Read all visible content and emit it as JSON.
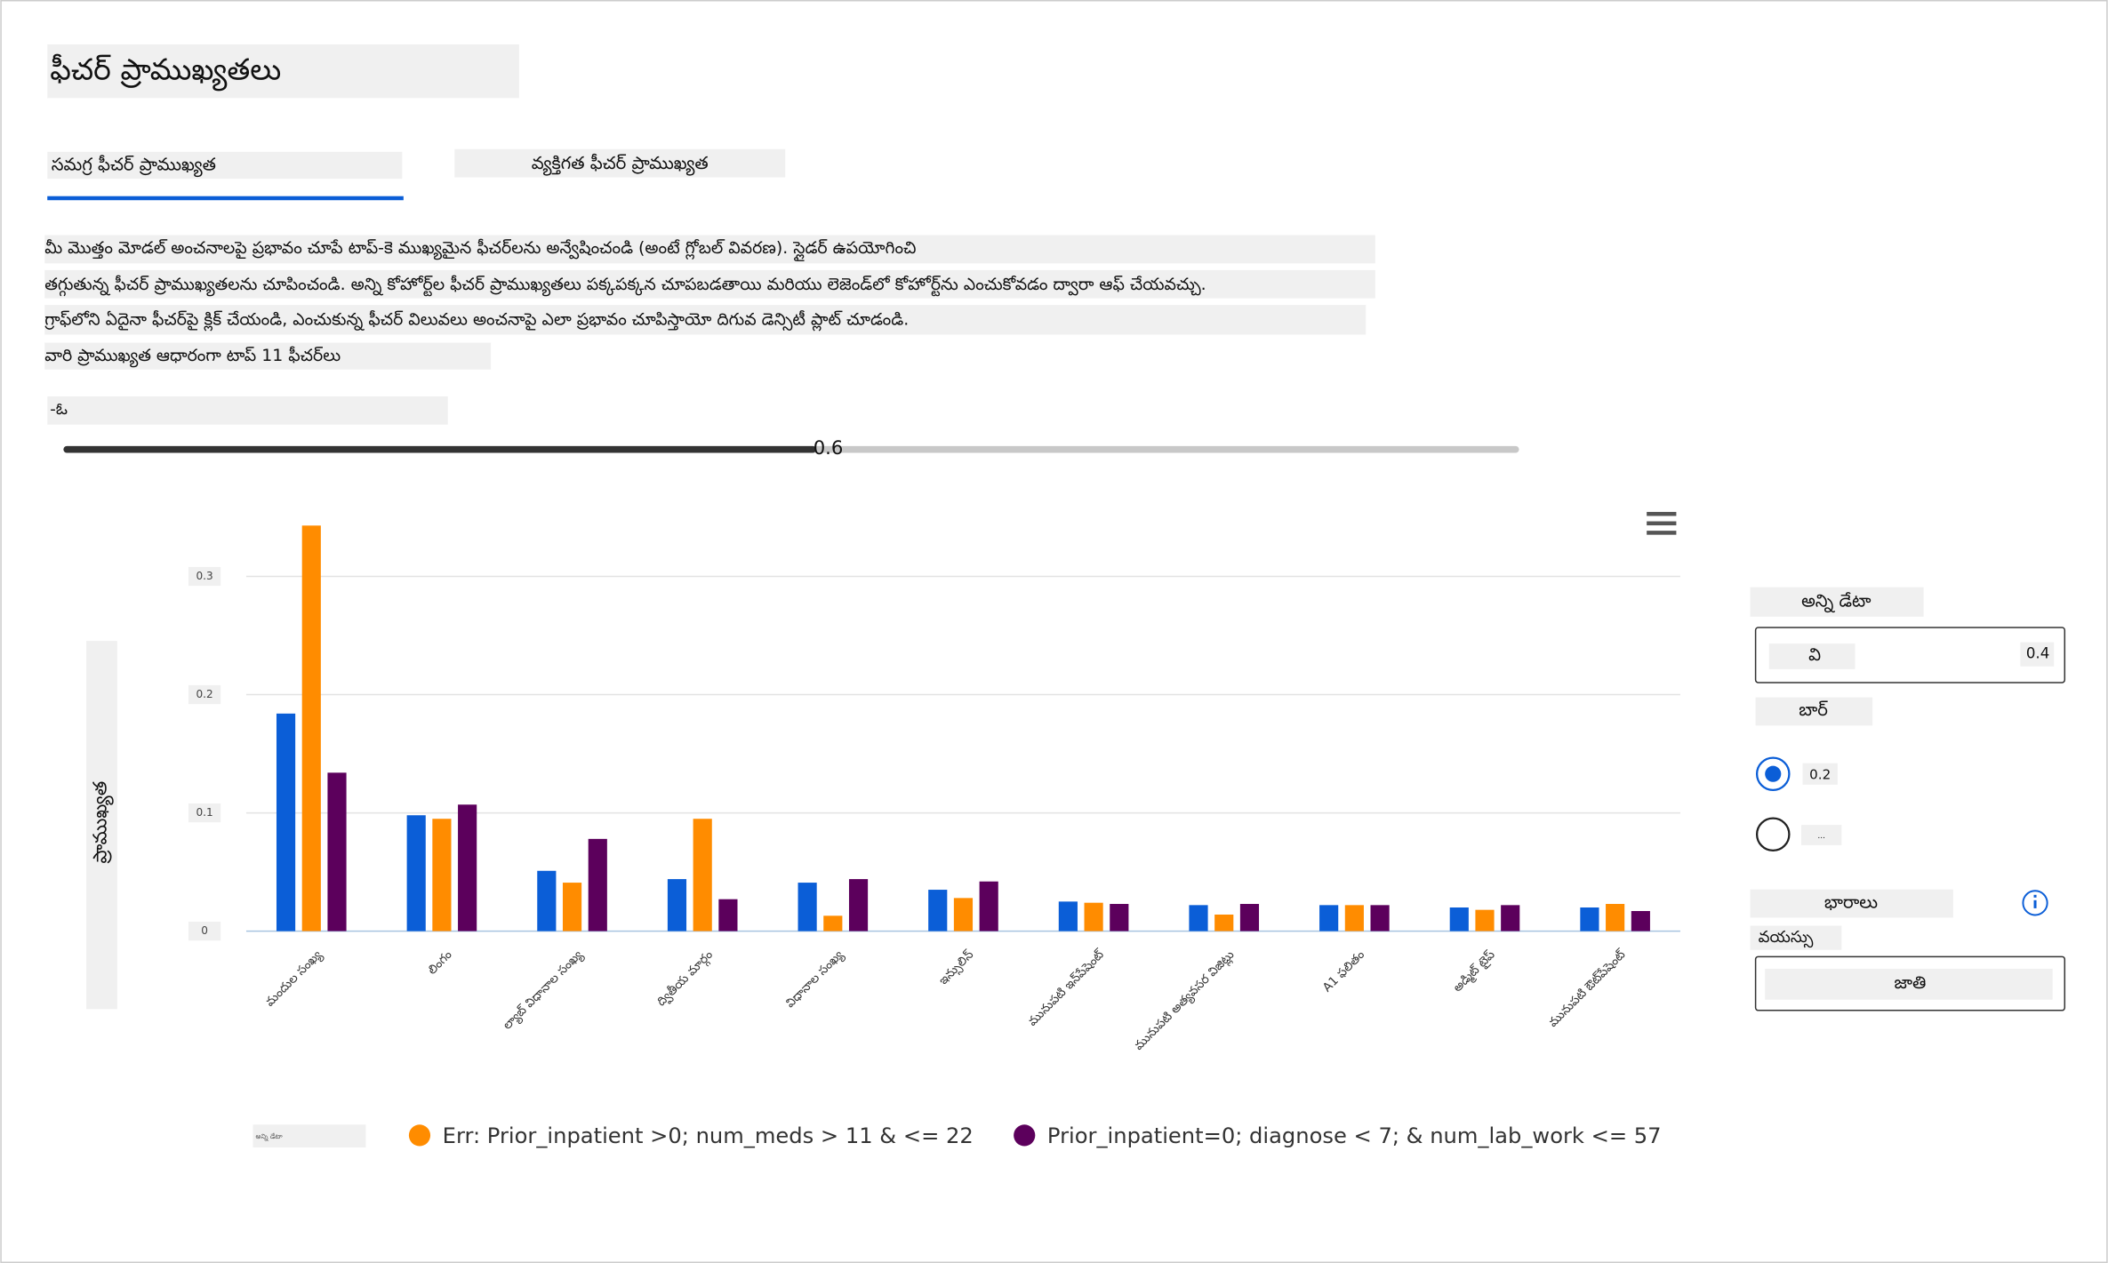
{
  "header": {
    "title": "ఫీచర్ ప్రాముఖ్యతలు"
  },
  "tabs": [
    "సమగ్ర ఫీచర్ ప్రాముఖ్యత",
    "వ్యక్తిగత ఫీచర్ ప్రాముఖ్యత"
  ],
  "description": [
    "మీ మొత్తం మోడల్ అంచనాలపై ప్రభావం చూపే టాప్-కె ముఖ్యమైన ఫీచర్‌లను అన్వేషించండి (అంటే గ్లోబల్ వివరణ). స్లైడర్ ఉపయోగించి",
    "తగ్గుతున్న ఫీచర్ ప్రాముఖ్యతలను చూపించండి. అన్ని కోహోర్ట్‌ల ఫీచర్ ప్రాముఖ్యతలు పక్కపక్కన చూపబడతాయి మరియు లెజెండ్‌లో కోహోర్ట్‌ను ఎంచుకోవడం ద్వారా ఆఫ్ చేయవచ్చు.",
    "గ్రాఫ్‌లోని ఏదైనా ఫీచర్‌పై క్లిక్ చేయండి, ఎంచుకున్న ఫీచర్ విలువలు అంచనాపై ఎలా ప్రభావం చూపిస్తాయో దిగువ డెన్సిటీ ప్లాట్ చూడండి.",
    "వారి ప్రాముఖ్యత ఆధారంగా టాప్ 11 ఫీచర్‌లు"
  ],
  "slider": {
    "label": "-ఓ",
    "value": "0.6"
  },
  "side_panel": {
    "cohort_label": "అన్ని డేటా",
    "dropdown": {
      "label": "వి",
      "value": "0.4"
    },
    "chart_type_label": "బార్",
    "radios": [
      "0.2",
      "..."
    ],
    "weights_label": "భారాలు",
    "weights_sublabel": "వయస్సు",
    "weights_dropdown": "జాతి"
  },
  "chart_data": {
    "type": "bar",
    "ylabel": "ప్రాముఖ్యత",
    "categories": [
      "మందుల సంఖ్య",
      "లింగం",
      "ల్యాబ్ విధానాల సంఖ్య",
      "ద్వితీయ మార్గం",
      "విధానాల సంఖ్య",
      "ఇన్సులిన్",
      "మునుపటి ఇన్‌పేషెంట్",
      "మునుపటి అత్యవసర విజిట్లు",
      "A1 ఫలితం",
      "అడ్మిట్ టైప్",
      "మునుపటి ఔట్‌పేషెంట్"
    ],
    "series": [
      {
        "name": "అన్ని డేటా",
        "color": "#0b5ed7",
        "values": [
          0.184,
          0.098,
          0.051,
          0.044,
          0.041,
          0.035,
          0.025,
          0.022,
          0.022,
          0.02,
          0.02
        ]
      },
      {
        "name": "Err: Prior_inpatient >0; num_meds > 11 & <= 22",
        "color": "#ff8c00",
        "values": [
          0.343,
          0.095,
          0.041,
          0.095,
          0.013,
          0.028,
          0.024,
          0.014,
          0.022,
          0.018,
          0.023
        ]
      },
      {
        "name": "Prior_inpatient=0; diagnose < 7; & num_lab_work <= 57",
        "color": "#5c005c",
        "values": [
          0.134,
          0.107,
          0.078,
          0.027,
          0.044,
          0.042,
          0.023,
          0.023,
          0.022,
          0.022,
          0.017
        ]
      }
    ],
    "ylim": [
      0,
      0.35
    ],
    "yticks": [
      0,
      0.1,
      0.2,
      0.3
    ],
    "grid": true
  }
}
